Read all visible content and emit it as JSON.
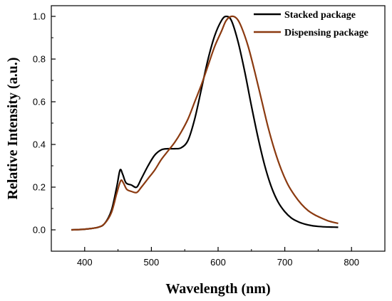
{
  "chart_data": {
    "type": "line",
    "xlabel": "Wavelength (nm)",
    "ylabel": "Relative Intensity (a.u.)",
    "xlim": [
      350,
      850
    ],
    "ylim": [
      -0.1,
      1.05
    ],
    "x_ticks": [
      400,
      500,
      600,
      700,
      800
    ],
    "y_ticks": [
      0.0,
      0.2,
      0.4,
      0.6,
      0.8,
      1.0
    ],
    "x_tick_labels": [
      "400",
      "500",
      "600",
      "700",
      "800"
    ],
    "y_tick_labels": [
      "0.0",
      "0.2",
      "0.4",
      "0.6",
      "0.8",
      "1.0"
    ],
    "grid": false,
    "legend_position": "top-right",
    "series": [
      {
        "name": "Stacked package",
        "color": "#000000",
        "points": [
          [
            380,
            0.0
          ],
          [
            400,
            0.003
          ],
          [
            420,
            0.012
          ],
          [
            430,
            0.03
          ],
          [
            440,
            0.09
          ],
          [
            448,
            0.2
          ],
          [
            453,
            0.28
          ],
          [
            457,
            0.26
          ],
          [
            462,
            0.22
          ],
          [
            470,
            0.21
          ],
          [
            478,
            0.2
          ],
          [
            485,
            0.24
          ],
          [
            495,
            0.3
          ],
          [
            505,
            0.35
          ],
          [
            515,
            0.375
          ],
          [
            525,
            0.38
          ],
          [
            535,
            0.38
          ],
          [
            545,
            0.385
          ],
          [
            555,
            0.42
          ],
          [
            565,
            0.52
          ],
          [
            575,
            0.66
          ],
          [
            585,
            0.8
          ],
          [
            595,
            0.91
          ],
          [
            605,
            0.98
          ],
          [
            612,
            1.0
          ],
          [
            620,
            0.98
          ],
          [
            630,
            0.88
          ],
          [
            640,
            0.74
          ],
          [
            650,
            0.58
          ],
          [
            660,
            0.43
          ],
          [
            670,
            0.3
          ],
          [
            680,
            0.2
          ],
          [
            690,
            0.13
          ],
          [
            700,
            0.085
          ],
          [
            710,
            0.055
          ],
          [
            720,
            0.038
          ],
          [
            730,
            0.027
          ],
          [
            740,
            0.02
          ],
          [
            750,
            0.016
          ],
          [
            760,
            0.014
          ],
          [
            770,
            0.013
          ],
          [
            780,
            0.012
          ]
        ]
      },
      {
        "name": "Dispensing package",
        "color": "#8B3A10",
        "points": [
          [
            380,
            0.0
          ],
          [
            400,
            0.003
          ],
          [
            420,
            0.012
          ],
          [
            430,
            0.03
          ],
          [
            440,
            0.08
          ],
          [
            448,
            0.17
          ],
          [
            454,
            0.23
          ],
          [
            458,
            0.22
          ],
          [
            463,
            0.19
          ],
          [
            470,
            0.18
          ],
          [
            478,
            0.175
          ],
          [
            485,
            0.2
          ],
          [
            495,
            0.24
          ],
          [
            505,
            0.28
          ],
          [
            515,
            0.33
          ],
          [
            525,
            0.37
          ],
          [
            535,
            0.41
          ],
          [
            545,
            0.46
          ],
          [
            555,
            0.52
          ],
          [
            565,
            0.6
          ],
          [
            575,
            0.68
          ],
          [
            585,
            0.77
          ],
          [
            595,
            0.86
          ],
          [
            605,
            0.93
          ],
          [
            612,
            0.98
          ],
          [
            620,
            1.0
          ],
          [
            628,
            0.99
          ],
          [
            635,
            0.95
          ],
          [
            645,
            0.86
          ],
          [
            655,
            0.74
          ],
          [
            665,
            0.61
          ],
          [
            675,
            0.48
          ],
          [
            685,
            0.37
          ],
          [
            695,
            0.28
          ],
          [
            705,
            0.21
          ],
          [
            715,
            0.16
          ],
          [
            725,
            0.12
          ],
          [
            735,
            0.09
          ],
          [
            745,
            0.07
          ],
          [
            755,
            0.055
          ],
          [
            765,
            0.042
          ],
          [
            780,
            0.03
          ]
        ]
      }
    ]
  }
}
